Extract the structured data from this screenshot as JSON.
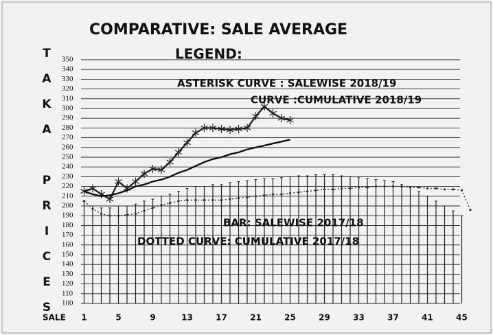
{
  "chart_data": {
    "type": "line",
    "title": "COMPARATIVE: SALE AVERAGE",
    "y_label": "TAKA PRICES",
    "x_label": "SALE",
    "legend_title": "LEGEND:",
    "x": [
      1,
      2,
      3,
      4,
      5,
      6,
      7,
      8,
      9,
      10,
      11,
      12,
      13,
      14,
      15,
      16,
      17,
      18,
      19,
      20,
      21,
      22,
      23,
      24,
      25,
      26,
      27,
      28,
      29,
      30,
      31,
      32,
      33,
      34,
      35,
      36,
      37,
      38,
      39,
      40,
      41,
      42,
      43,
      44,
      45,
      46
    ],
    "xlim": [
      0,
      48
    ],
    "xticks": [
      1,
      5,
      9,
      13,
      17,
      21,
      25,
      29,
      33,
      37,
      41,
      45
    ],
    "ylim": [
      100,
      350
    ],
    "yticks": [
      100,
      110,
      120,
      130,
      140,
      150,
      160,
      170,
      180,
      190,
      200,
      210,
      220,
      230,
      240,
      250,
      260,
      270,
      280,
      290,
      300,
      310,
      320,
      330,
      340,
      350
    ],
    "grid": true,
    "series": [
      {
        "name": "ASTERISK CURVE :  SALEWISE 2018/19",
        "type": "line",
        "marker": "asterisk",
        "style": "solid",
        "color": "#222222",
        "values": [
          215,
          218,
          212,
          207,
          225,
          218,
          225,
          233,
          238,
          237,
          245,
          255,
          265,
          275,
          280,
          280,
          279,
          278,
          279,
          280,
          292,
          302,
          295,
          290,
          288,
          null,
          null,
          null,
          null,
          null,
          null,
          null,
          null,
          null,
          null,
          null,
          null,
          null,
          null,
          null,
          null,
          null,
          null,
          null,
          null,
          null
        ]
      },
      {
        "name": "CURVE :CUMULATIVE 2018/19",
        "type": "line",
        "marker": "none",
        "style": "solid",
        "color": "#111111",
        "values": [
          215,
          212,
          210,
          211,
          213,
          216,
          220,
          222,
          225,
          227,
          230,
          234,
          237,
          241,
          245,
          248,
          250,
          253,
          255,
          258,
          260,
          262,
          264,
          266,
          268,
          null,
          null,
          null,
          null,
          null,
          null,
          null,
          null,
          null,
          null,
          null,
          null,
          null,
          null,
          null,
          null,
          null,
          null,
          null,
          null,
          null
        ]
      },
      {
        "name": "BAR:  SALEWISE 2017/18",
        "type": "bar",
        "color": "#222222",
        "values": [
          205,
          200,
          198,
          198,
          200,
          200,
          202,
          205,
          207,
          210,
          212,
          215,
          218,
          220,
          220,
          222,
          222,
          224,
          225,
          226,
          227,
          228,
          228,
          229,
          230,
          231,
          231,
          232,
          232,
          232,
          231,
          230,
          229,
          228,
          227,
          226,
          225,
          222,
          220,
          215,
          210,
          205,
          200,
          195,
          190,
          null
        ]
      },
      {
        "name": "DOTTED CURVE: CUMULATIVE 2017/18",
        "type": "line",
        "marker": "dot",
        "style": "dotted",
        "color": "#333333",
        "values": [
          205,
          197,
          192,
          190,
          190,
          191,
          192,
          195,
          198,
          201,
          203,
          205,
          206,
          206,
          206,
          206,
          206,
          207,
          208,
          209,
          210,
          211,
          212,
          212,
          213,
          214,
          215,
          216,
          217,
          217,
          218,
          218,
          219,
          219,
          220,
          220,
          220,
          220,
          219,
          219,
          218,
          218,
          217,
          217,
          216,
          196
        ]
      }
    ]
  }
}
